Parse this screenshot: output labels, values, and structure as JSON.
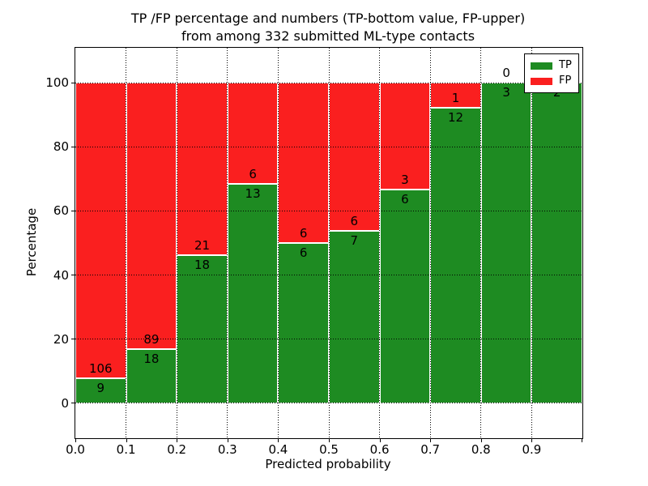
{
  "figure": {
    "title_line1": "TP /FP percentage and numbers (TP-bottom value, FP-upper)",
    "title_line2": "from among 332 submitted ML-type contacts"
  },
  "chart_data": {
    "type": "bar",
    "variant": "stacked-percentage",
    "title": "TP /FP percentage and numbers (TP-bottom value, FP-upper) from among 332 submitted ML-type contacts",
    "xlabel": "Predicted probability",
    "ylabel": "Percentage",
    "total_contacts": 332,
    "xlim": [
      0.0,
      1.0
    ],
    "ylim": [
      -11,
      111
    ],
    "bin_width": 0.1,
    "x_tick_labels": [
      "0.0",
      "0.1",
      "0.2",
      "0.3",
      "0.4",
      "0.5",
      "0.6",
      "0.7",
      "0.8",
      "0.9"
    ],
    "y_tick_values": [
      0,
      20,
      40,
      60,
      80,
      100
    ],
    "grid": "dotted",
    "categories": [
      "0.0-0.1",
      "0.1-0.2",
      "0.2-0.3",
      "0.3-0.4",
      "0.4-0.5",
      "0.5-0.6",
      "0.6-0.7",
      "0.7-0.8",
      "0.8-0.9",
      "0.9-1.0"
    ],
    "series": [
      {
        "name": "TP",
        "color": "#1e8b22",
        "values": [
          9,
          18,
          18,
          13,
          6,
          7,
          6,
          12,
          3,
          2
        ]
      },
      {
        "name": "FP",
        "color": "#fa1f1f",
        "values": [
          106,
          89,
          21,
          6,
          6,
          6,
          3,
          1,
          0,
          0
        ]
      }
    ],
    "tp_percent": [
      7.8,
      16.8,
      46.2,
      68.4,
      50.0,
      53.8,
      66.7,
      92.3,
      100.0,
      100.0
    ],
    "legend": {
      "position": "upper right",
      "entries": [
        {
          "label": "TP",
          "color": "#1e8b22"
        },
        {
          "label": "FP",
          "color": "#fa1f1f"
        }
      ]
    }
  }
}
